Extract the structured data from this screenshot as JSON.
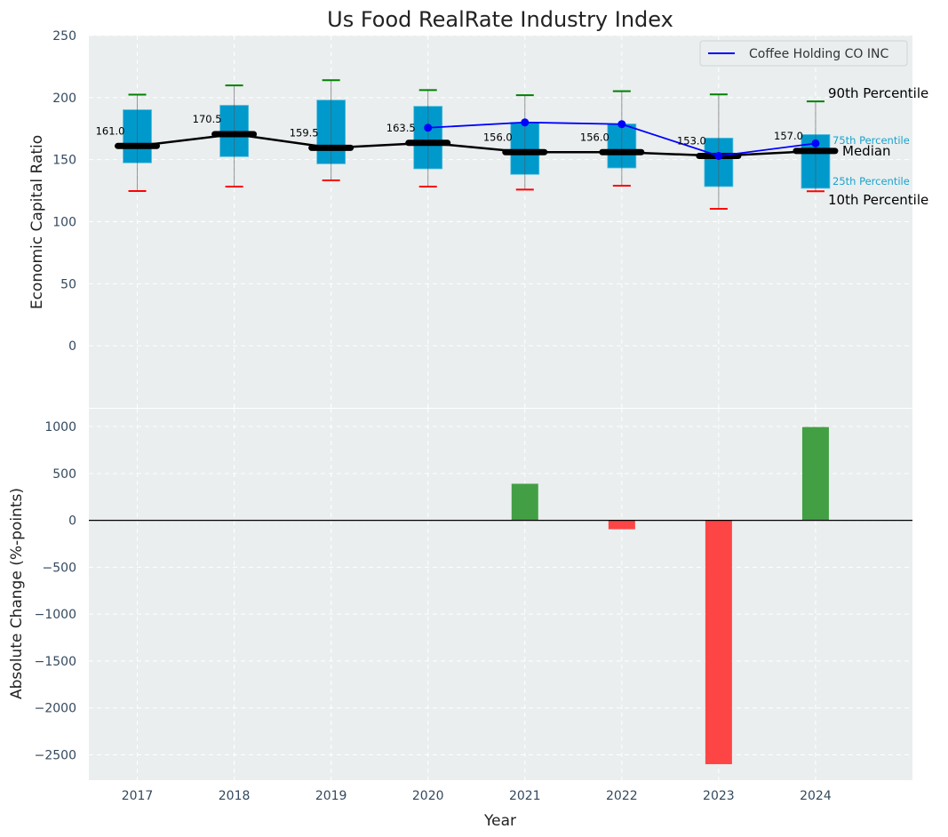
{
  "chart_data": [
    {
      "type": "box",
      "title": "Us Food RealRate Industry Index",
      "xlabel": "",
      "ylabel": "Economic Capital Ratio",
      "ylim": [
        -50,
        250
      ],
      "yticks": [
        0,
        50,
        100,
        150,
        200,
        250
      ],
      "grid": true,
      "categories": [
        "2017",
        "2018",
        "2019",
        "2020",
        "2021",
        "2022",
        "2023",
        "2024"
      ],
      "series": [
        {
          "name": "10th Percentile",
          "values": [
            124.7,
            128.3,
            133.3,
            128.3,
            125.9,
            129.0,
            110.4,
            124.5
          ]
        },
        {
          "name": "25th Percentile",
          "values": [
            147.4,
            152.4,
            146.6,
            142.6,
            138.1,
            143.3,
            128.3,
            126.9
          ]
        },
        {
          "name": "Median",
          "values": [
            161.0,
            170.5,
            159.5,
            163.5,
            156.0,
            156.0,
            153.0,
            157.0
          ]
        },
        {
          "name": "75th Percentile",
          "values": [
            190.2,
            193.8,
            198.0,
            193.0,
            180.0,
            178.8,
            167.4,
            170.2
          ]
        },
        {
          "name": "90th Percentile",
          "values": [
            202.4,
            209.8,
            214.0,
            206.1,
            201.9,
            205.2,
            202.6,
            196.9
          ]
        },
        {
          "name": "Coffee Holding CO INC",
          "values": [
            null,
            null,
            null,
            175.7,
            180.0,
            178.6,
            153.0,
            163.1
          ]
        }
      ],
      "median_labels": [
        "161.0",
        "170.5",
        "159.5",
        "163.5",
        "156.0",
        "156.0",
        "153.0",
        "157.0"
      ],
      "annotations": {
        "p90": "90th Percentile",
        "p75": "75th Percentile",
        "median": "Median",
        "p25": "25th Percentile",
        "p10": "10th Percentile"
      },
      "legend": {
        "entries": [
          "Coffee Holding CO INC"
        ],
        "position": "top-right"
      },
      "colors": {
        "box": "#0099cc",
        "median": "#000000",
        "p90": "#008000",
        "p10": "#ff0000",
        "company": "#0000ff",
        "background": "#eaeeef"
      }
    },
    {
      "type": "bar",
      "title": "",
      "xlabel": "Year",
      "ylabel": "Absolute Change (%-points)",
      "ylim": [
        -2770,
        1190
      ],
      "yticks": [
        1000,
        500,
        0,
        -500,
        -1000,
        -1500,
        -2000,
        -2500
      ],
      "ytick_labels": [
        "1000",
        "500",
        "0",
        "−500",
        "−1000",
        "−1500",
        "−2000",
        "−2500"
      ],
      "grid": true,
      "categories": [
        "2017",
        "2018",
        "2019",
        "2020",
        "2021",
        "2022",
        "2023",
        "2024"
      ],
      "values": [
        null,
        null,
        null,
        null,
        390,
        -95,
        -2600,
        995
      ],
      "colors": {
        "positive": "#3a9a3a",
        "negative": "#ff3b3b"
      }
    }
  ],
  "xlim": [
    2016.5,
    2025.0
  ]
}
